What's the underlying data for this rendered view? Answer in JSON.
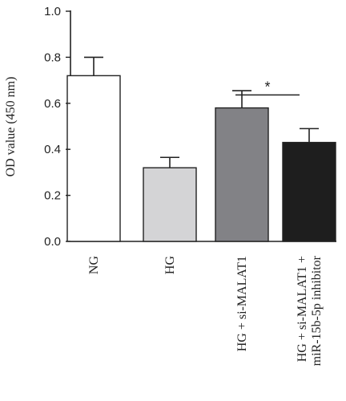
{
  "chart_data": {
    "type": "bar",
    "ylabel": "OD value (450 nm)",
    "ylim": [
      0.0,
      1.0
    ],
    "yticks": [
      "0.0",
      "0.2",
      "0.4",
      "0.6",
      "0.8",
      "1.0"
    ],
    "categories": [
      [
        "NG"
      ],
      [
        "HG"
      ],
      [
        "HG + si-MALAT1"
      ],
      [
        "HG + si-MALAT1 +",
        "miR-15b-5p inhibitor"
      ]
    ],
    "values": [
      0.72,
      0.32,
      0.58,
      0.43
    ],
    "errors": [
      0.08,
      0.045,
      0.075,
      0.06
    ],
    "bar_colors": [
      "#ffffff",
      "#d4d4d6",
      "#828286",
      "#1e1e1e"
    ],
    "significance": [
      {
        "from": 2,
        "to": 3,
        "y": 0.72,
        "label": "*"
      }
    ]
  }
}
